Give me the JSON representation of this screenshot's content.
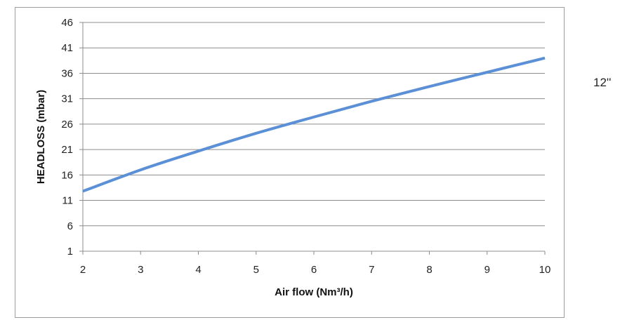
{
  "chart_data": {
    "type": "line",
    "title": "",
    "xlabel": "Air flow (Nm³/h)",
    "ylabel": "HEADLOSS (mbar)",
    "xlim": [
      2,
      10
    ],
    "ylim": [
      1,
      46
    ],
    "x_ticks": [
      "2",
      "3",
      "4",
      "5",
      "6",
      "7",
      "8",
      "9",
      "10"
    ],
    "y_ticks": [
      "1",
      "6",
      "11",
      "16",
      "21",
      "26",
      "31",
      "36",
      "41",
      "46"
    ],
    "grid": "horizontal",
    "legend": "none",
    "series": [
      {
        "label": "12''",
        "color": "#5b8fd6",
        "x": [
          2,
          3,
          4,
          5,
          6,
          7,
          8,
          9,
          10
        ],
        "y": [
          12.8,
          17.0,
          20.7,
          24.2,
          27.4,
          30.5,
          33.4,
          36.2,
          39.0
        ]
      }
    ]
  }
}
